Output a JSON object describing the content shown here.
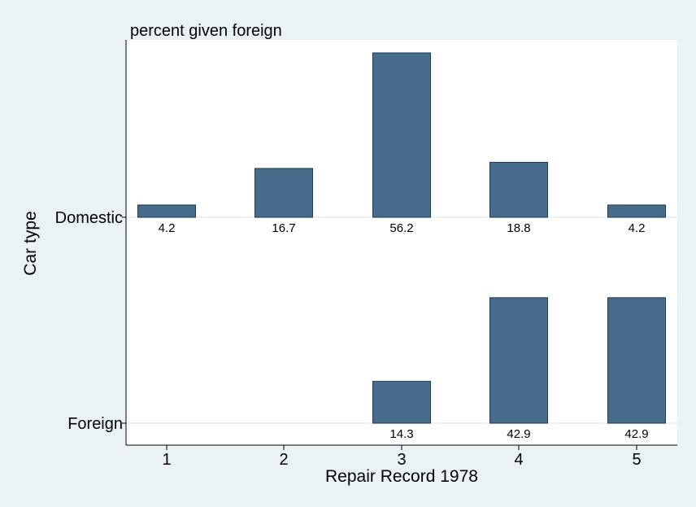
{
  "chart_data": {
    "type": "bar",
    "title": "percent given foreign",
    "xlabel": "Repair Record 1978",
    "ylabel": "Car type",
    "categories": [
      "1",
      "2",
      "3",
      "4",
      "5"
    ],
    "panels": [
      {
        "name": "Domestic",
        "values": [
          4.2,
          16.7,
          56.2,
          18.8,
          4.2
        ],
        "labels": [
          "4.2",
          "16.7",
          "56.2",
          "18.8",
          "4.2"
        ]
      },
      {
        "name": "Foreign",
        "values": [
          0,
          0,
          14.3,
          42.9,
          42.9
        ],
        "labels": [
          "",
          "",
          "14.3",
          "42.9",
          "42.9"
        ]
      }
    ],
    "ylim": [
      0,
      56.2
    ],
    "bar_color": "#476b8b",
    "bar_edge_color": "#1f3a52",
    "background_color": "#eaf2f3",
    "plot_color": "#ffffff",
    "grid": true
  }
}
